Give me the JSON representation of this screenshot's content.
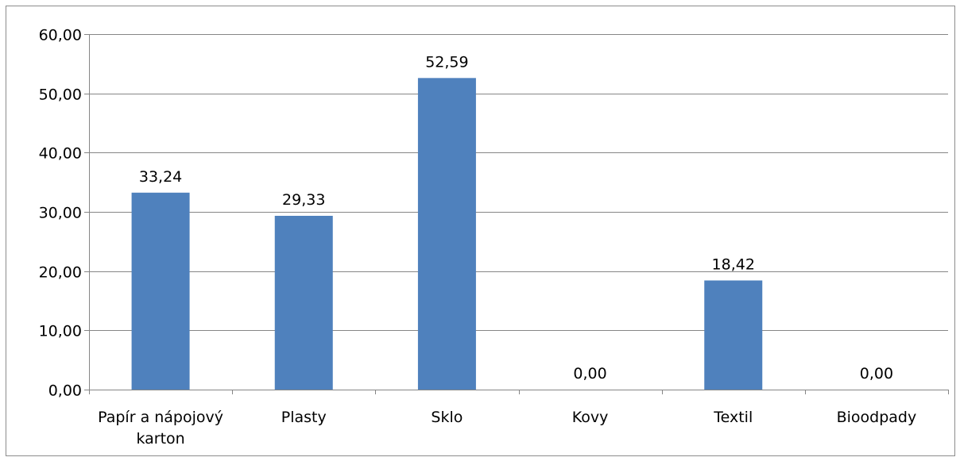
{
  "chart_data": {
    "type": "bar",
    "title": "",
    "xlabel": "",
    "ylabel": "",
    "categories": [
      "Papír a nápojový karton",
      "Plasty",
      "Sklo",
      "Kovy",
      "Textil",
      "Bioodpady"
    ],
    "category_lines": [
      [
        "Papír a nápojový",
        "karton"
      ],
      [
        "Plasty"
      ],
      [
        "Sklo"
      ],
      [
        "Kovy"
      ],
      [
        "Textil"
      ],
      [
        "Bioodpady"
      ]
    ],
    "values": [
      33.24,
      29.33,
      52.59,
      0.0,
      18.42,
      0.0
    ],
    "value_labels": [
      "33,24",
      "29,33",
      "52,59",
      "0,00",
      "18,42",
      "0,00"
    ],
    "ylim": [
      0,
      60
    ],
    "yticks": [
      0,
      10,
      20,
      30,
      40,
      50,
      60
    ],
    "ytick_labels": [
      "0,00",
      "10,00",
      "20,00",
      "30,00",
      "40,00",
      "50,00",
      "60,00"
    ],
    "grid": true,
    "legend": "none",
    "bar_color": "#4f81bd",
    "grid_color": "#868686"
  }
}
